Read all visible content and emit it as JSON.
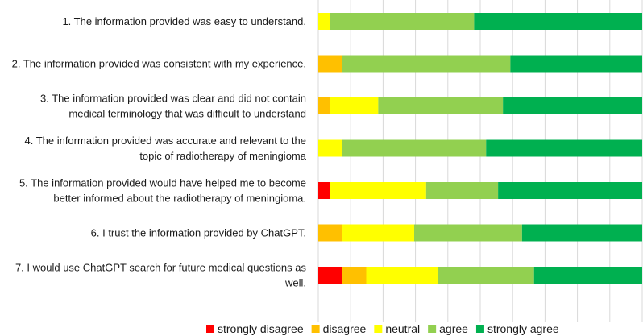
{
  "chart_data": {
    "type": "bar",
    "orientation": "horizontal",
    "stacked": true,
    "percent": true,
    "title": "",
    "xlabel": "",
    "ylabel": "",
    "xlim": [
      0,
      100
    ],
    "grid": true,
    "legend_position": "bottom",
    "categories": [
      [
        "1. The information provided was easy to understand."
      ],
      [
        "2. The information provided was consistent with my experience."
      ],
      [
        "3. The information provided was clear and did not contain",
        "medical terminology that was difficult to understand"
      ],
      [
        "4. The information provided was accurate and relevant to the",
        "topic of radiotherapy of meningioma"
      ],
      [
        "5. The information provided would have helped me to become",
        "better informed about the radiotherapy of meningioma."
      ],
      [
        "6. I trust the information provided by ChatGPT."
      ],
      [
        "7. I would use ChatGPT search for future medical questions as",
        "well."
      ]
    ],
    "series": [
      {
        "name": "strongly disagree",
        "color": "#ff0000",
        "values": [
          0,
          0,
          0,
          0,
          3.7,
          0,
          7.4
        ]
      },
      {
        "name": "disagree",
        "color": "#ffc000",
        "values": [
          0,
          7.4,
          3.7,
          0,
          0,
          7.4,
          7.4
        ]
      },
      {
        "name": "neutral",
        "color": "#ffff00",
        "values": [
          3.7,
          0,
          14.8,
          7.4,
          29.6,
          22.2,
          22.2
        ]
      },
      {
        "name": "agree",
        "color": "#92d050",
        "values": [
          44.4,
          51.9,
          38.5,
          44.4,
          22.2,
          33.3,
          29.6
        ]
      },
      {
        "name": "strongly agree",
        "color": "#00b050",
        "values": [
          51.9,
          40.7,
          43.0,
          48.2,
          44.5,
          37.1,
          33.4
        ]
      }
    ]
  }
}
